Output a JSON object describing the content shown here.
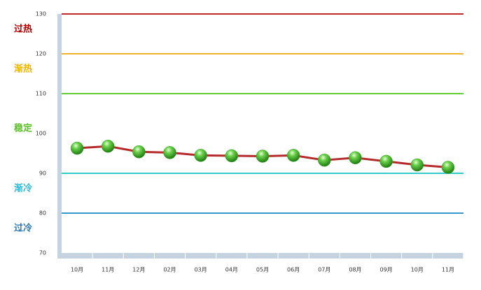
{
  "chart_data": {
    "type": "line",
    "categories": [
      "10月",
      "11月",
      "12月",
      "02月",
      "03月",
      "04月",
      "05月",
      "06月",
      "07月",
      "08月",
      "09月",
      "10月",
      "11月"
    ],
    "values": [
      96.3,
      96.8,
      95.4,
      95.2,
      94.5,
      94.4,
      94.3,
      94.5,
      93.3,
      93.9,
      93.0,
      92.1,
      91.5
    ],
    "color": "#b52a2a",
    "marker_color": "#3da82a",
    "ylim": [
      70,
      130
    ],
    "yticks": [
      70,
      80,
      90,
      100,
      110,
      120,
      130
    ],
    "reference_lines": [
      {
        "value": 130,
        "color": "#c0282d",
        "label": "过热",
        "label_color": "#b00000"
      },
      {
        "value": 120,
        "color": "#f0b030",
        "label": "渐热",
        "label_color": "#f0b400"
      },
      {
        "value": 110,
        "color": "#66cc33",
        "label": "稳定",
        "label_color": "#5cc02a"
      },
      {
        "value": 90,
        "color": "#33cccc",
        "label": "渐冷",
        "label_color": "#2fb8d8"
      },
      {
        "value": 80,
        "color": "#3399cc",
        "label": "过冷",
        "label_color": "#2a78b0"
      }
    ]
  }
}
